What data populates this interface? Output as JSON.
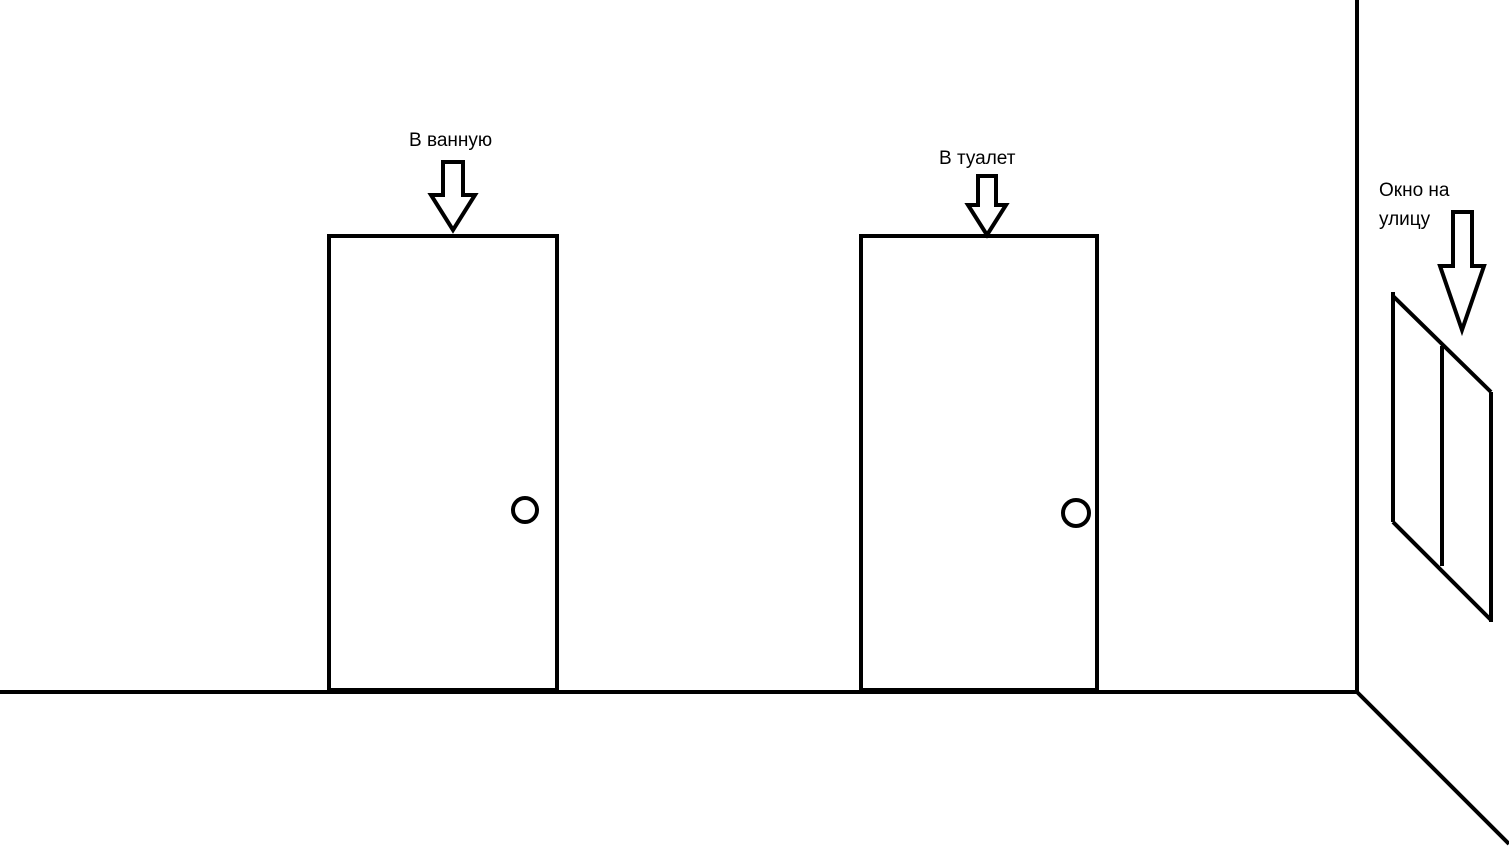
{
  "labels": {
    "bathroom": "В ванную",
    "toilet": "В туалет",
    "window_line1": "Окно на",
    "window_line2": "улицу"
  },
  "colors": {
    "ink": "#000000",
    "background": "#ffffff"
  }
}
